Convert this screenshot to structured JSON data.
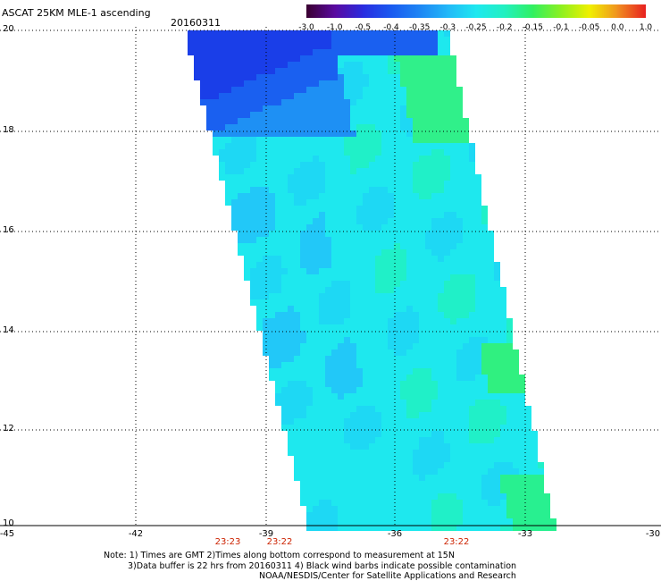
{
  "header": {
    "title": "ASCAT 25KM MLE-1 ascending",
    "date": "20160311"
  },
  "colorbar": {
    "labels": [
      "-3.0",
      "-1.0",
      "-0.5",
      "-0.4",
      "-0.35",
      "-0.3",
      "-0.25",
      "-0.2",
      "-0.15",
      "-0.1",
      "-0.05",
      "0.0",
      "1.0"
    ],
    "colors": [
      "#3a0030",
      "#5a0aa0",
      "#2a2ce0",
      "#1a5af0",
      "#1e86f4",
      "#22b8f8",
      "#1ee8f0",
      "#22f0c0",
      "#30f060",
      "#8cf020",
      "#f0f000",
      "#f09020",
      "#e82020"
    ]
  },
  "axes": {
    "lat_labels": [
      "20",
      "18",
      "16",
      "14",
      "12",
      "10"
    ],
    "lon_labels": [
      "-45",
      "-42",
      "-39",
      "-36",
      "-33",
      "-30"
    ],
    "time_labels": [
      "23:23",
      "23:22",
      "23:22"
    ]
  },
  "notes": {
    "line1": "Note: 1) Times are GMT 2)Times along bottom correspond to measurement at 15N",
    "line2": "3)Data buffer is 22 hrs from 20160311 4) Black wind barbs indicate possible contamination",
    "line3": "NOAA/NESDIS/Center for Satellite Applications and Research"
  },
  "colors": {
    "grid": "#000000",
    "time_label": "#cc2200"
  }
}
